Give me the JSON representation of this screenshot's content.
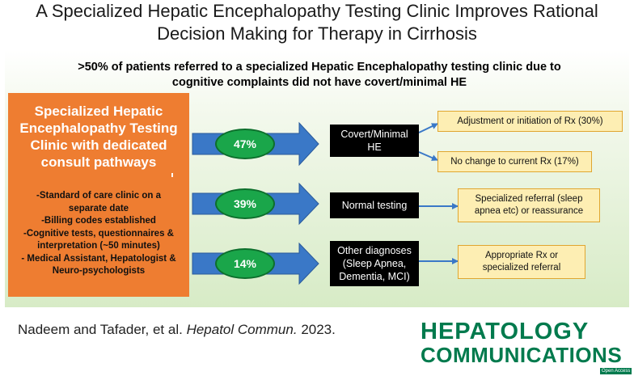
{
  "title": {
    "line1": "A Specialized Hepatic Encephalopathy Testing Clinic Improves Rational",
    "line2": "Decision Making for Therapy in Cirrhosis"
  },
  "subtitle": {
    "line1": ">50% of patients referred to a specialized Hepatic Encephalopathy testing clinic due to",
    "line2": "cognitive complaints did not have covert/minimal HE"
  },
  "clinic": {
    "title_lines": [
      "Specialized Hepatic",
      "Encephalopathy Testing",
      "Clinic with dedicated",
      "consult pathways"
    ],
    "details": [
      "-Standard of care clinic on a",
      "separate date",
      "-Billing codes established",
      "-Cognitive tests, questionnaires &",
      "interpretation (~50 minutes)",
      "- Medical Assistant, Hepatologist &",
      "Neuro-psychologists"
    ]
  },
  "branches": [
    {
      "percent": "47%",
      "diagnosis_lines": [
        "Covert/Minimal",
        "HE"
      ],
      "outcomes": [
        "Adjustment or initiation of Rx (30%)",
        "No change to current Rx (17%)"
      ]
    },
    {
      "percent": "39%",
      "diagnosis_lines": [
        "Normal testing"
      ],
      "outcomes": [
        "Specialized referral (sleep apnea etc) or reassurance"
      ]
    },
    {
      "percent": "14%",
      "diagnosis_lines": [
        "Other diagnoses",
        "(Sleep Apnea,",
        "Dementia, MCI)"
      ],
      "outcomes": [
        "Appropriate Rx or specialized referral"
      ]
    }
  ],
  "citation": {
    "authors": "Nadeem and Tafader, et al.",
    "journal": "Hepatol Commun.",
    "year": "2023."
  },
  "logo": {
    "line1": "HEPATOLOGY",
    "line2": "COMMUNICATIONS",
    "badge": "Open Access"
  },
  "colors": {
    "orange": "#ee7d31",
    "green_oval": "#1aa64a",
    "arrow_blue": "#3a78c7",
    "yellow_box": "#fdeeb3",
    "logo_green": "#007a4d"
  }
}
